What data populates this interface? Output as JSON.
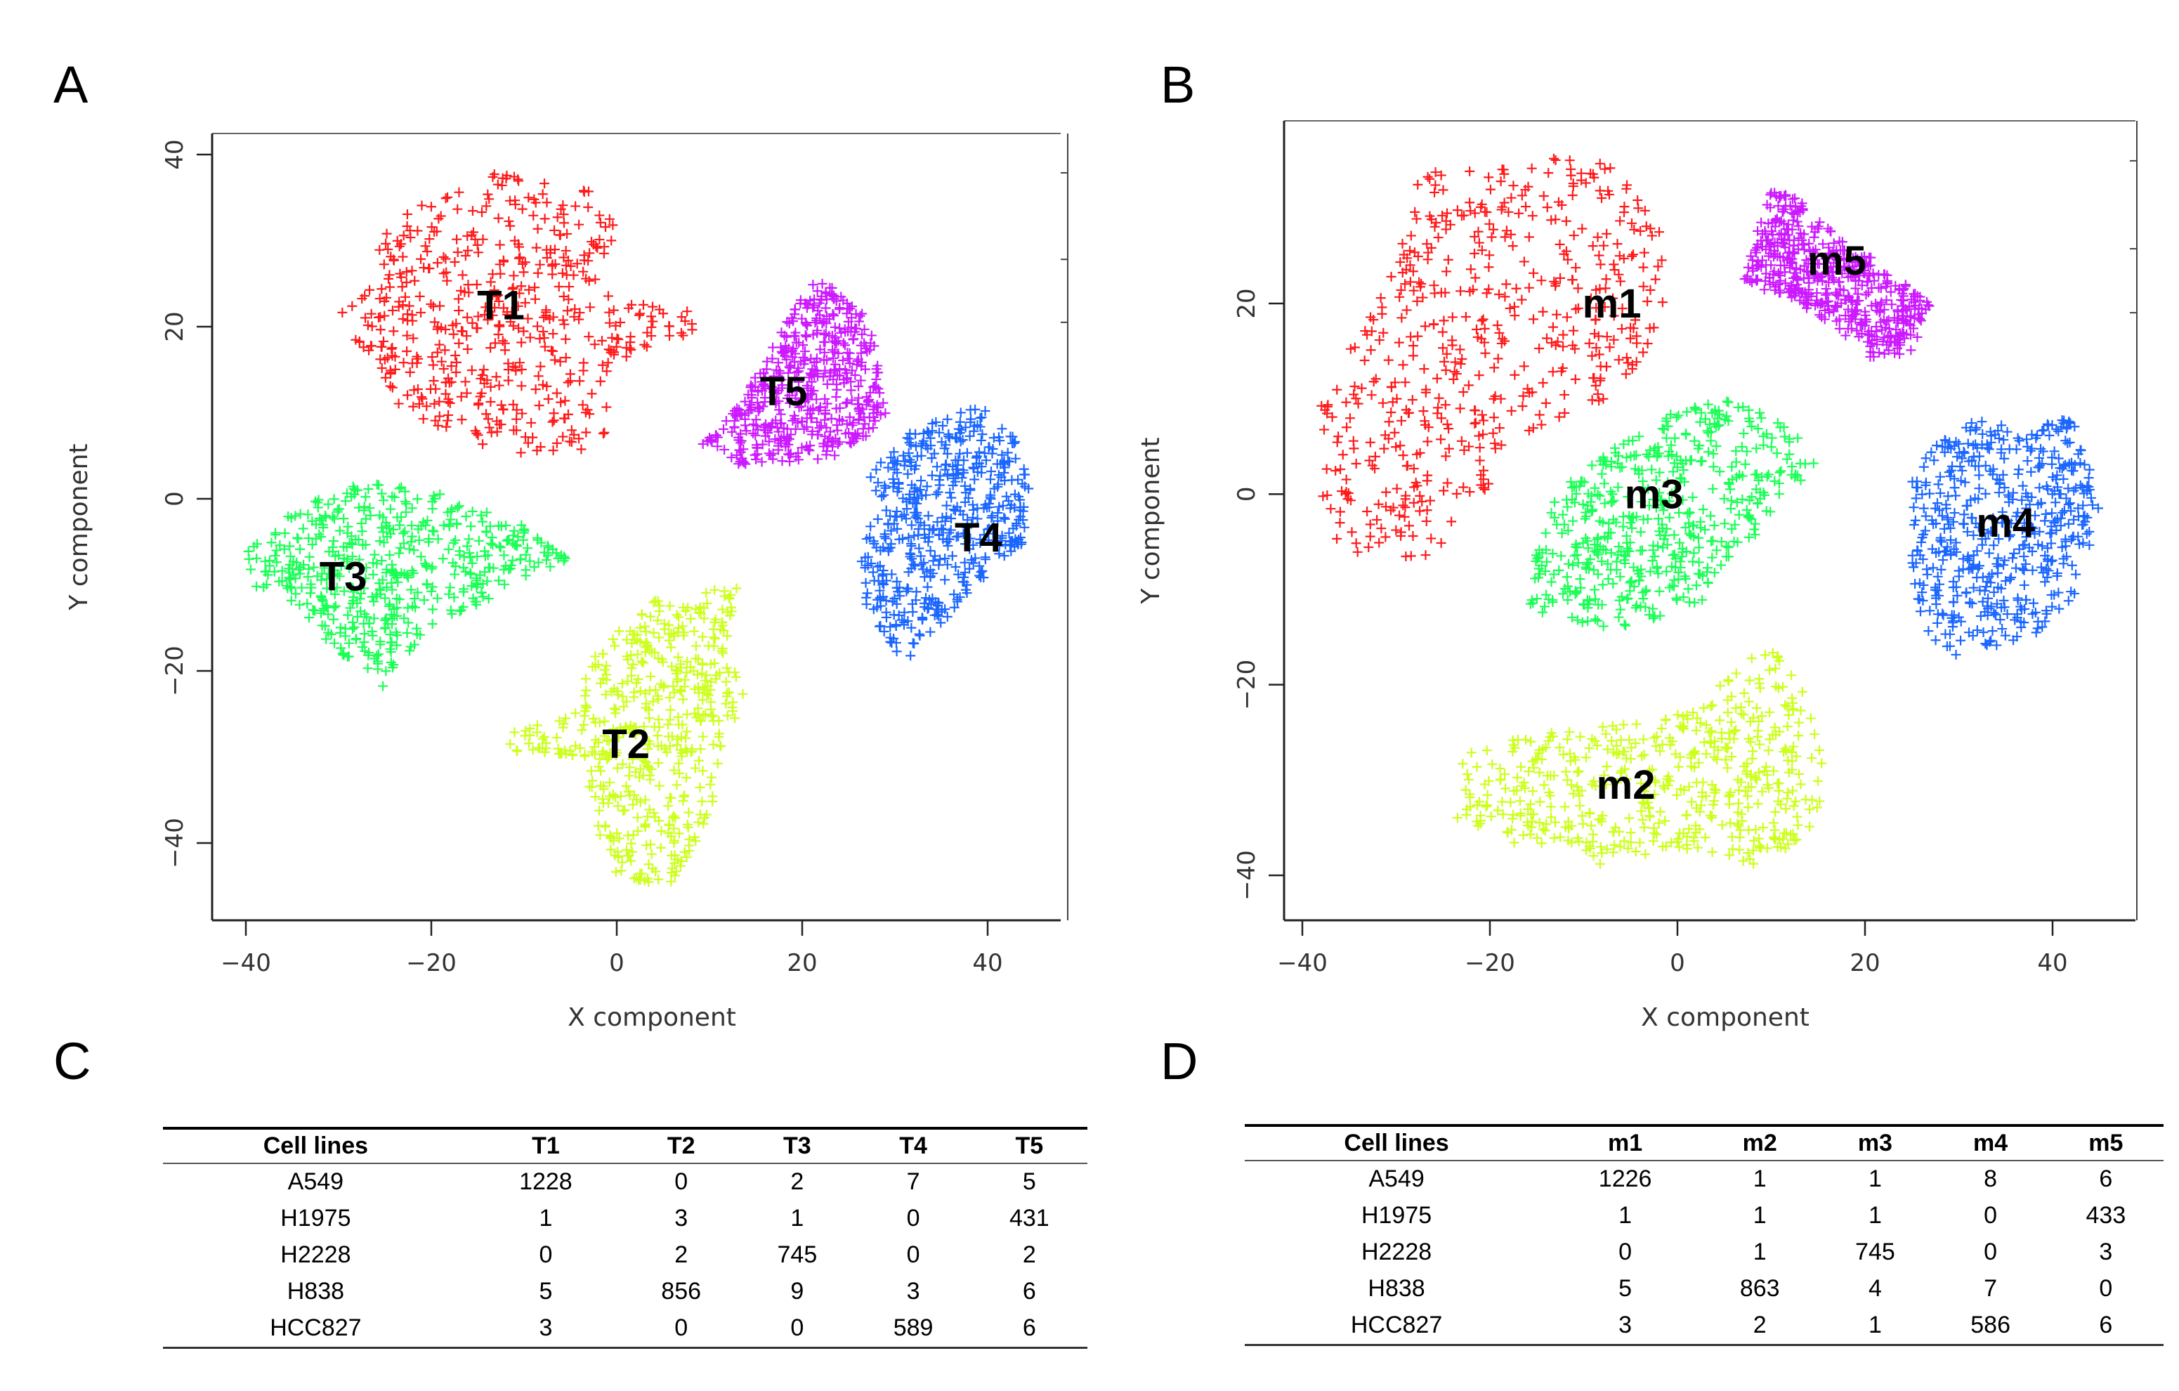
{
  "panels": {
    "a": "A",
    "b": "B",
    "c": "C",
    "d": "D"
  },
  "chart_data": [
    {
      "type": "scatter",
      "panel": "A",
      "xlabel": "X component",
      "ylabel": "Y component",
      "xlim": [
        -44,
        48
      ],
      "ylim": [
        -49,
        42
      ],
      "xticks": [
        -40,
        -20,
        0,
        20,
        40
      ],
      "yticks": [
        40,
        20,
        0,
        -20,
        -40
      ],
      "xtick_labels": [
        "−40",
        "−20",
        "0",
        "20",
        "40"
      ],
      "ytick_labels": [
        "40",
        "20",
        "0",
        "−20",
        "−40"
      ],
      "marker": "+",
      "clusters": [
        {
          "label": "T1",
          "color": "#ff1a1a",
          "label_at": [
            -12.5,
            22.5
          ],
          "polygon": [
            [
              -25,
              32
            ],
            [
              -14,
              38
            ],
            [
              -3,
              36
            ],
            [
              0,
              32
            ],
            [
              -1,
              26
            ],
            [
              3,
              23
            ],
            [
              9,
              22
            ],
            [
              8,
              19
            ],
            [
              2,
              17
            ],
            [
              0,
              12
            ],
            [
              -1,
              6
            ],
            [
              -8,
              5
            ],
            [
              -12,
              4
            ],
            [
              -16,
              7
            ],
            [
              -23,
              10
            ],
            [
              -26,
              16
            ],
            [
              -31,
              21
            ],
            [
              -26,
              27
            ]
          ]
        },
        {
          "label": "T2",
          "color": "#ccff1a",
          "label_at": [
            1,
            -28.5
          ],
          "polygon": [
            [
              -3,
              -19
            ],
            [
              3,
              -12
            ],
            [
              13,
              -10
            ],
            [
              12,
              -18
            ],
            [
              14,
              -23
            ],
            [
              11,
              -30
            ],
            [
              10,
              -38
            ],
            [
              6,
              -45
            ],
            [
              0,
              -44
            ],
            [
              -3,
              -36
            ],
            [
              -3,
              -30
            ],
            [
              -12,
              -30
            ],
            [
              -11,
              -27
            ],
            [
              -4,
              -24
            ]
          ]
        },
        {
          "label": "T3",
          "color": "#1aff55",
          "label_at": [
            -29.5,
            -9
          ],
          "polygon": [
            [
              -37,
              -3
            ],
            [
              -29,
              2
            ],
            [
              -20,
              1
            ],
            [
              -10,
              -3
            ],
            [
              -5,
              -7
            ],
            [
              -12,
              -11
            ],
            [
              -19,
              -14
            ],
            [
              -25,
              -22
            ],
            [
              -30,
              -18
            ],
            [
              -36,
              -11
            ],
            [
              -40,
              -10
            ],
            [
              -40,
              -5
            ]
          ]
        },
        {
          "label": "T4",
          "color": "#1a66ff",
          "label_at": [
            39,
            -4.5
          ],
          "polygon": [
            [
              27,
              3
            ],
            [
              32,
              8
            ],
            [
              39,
              11
            ],
            [
              43,
              7
            ],
            [
              45,
              1
            ],
            [
              44,
              -5
            ],
            [
              39,
              -10
            ],
            [
              34,
              -16
            ],
            [
              31,
              -19
            ],
            [
              27,
              -13
            ],
            [
              26,
              -5
            ],
            [
              28,
              -1
            ]
          ]
        },
        {
          "label": "T5",
          "color": "#cc1aff",
          "label_at": [
            18,
            12.5
          ],
          "polygon": [
            [
              9,
              6
            ],
            [
              13,
              11
            ],
            [
              16,
              16
            ],
            [
              19,
              22
            ],
            [
              22,
              26
            ],
            [
              27,
              21
            ],
            [
              29,
              13
            ],
            [
              29,
              9
            ],
            [
              24,
              5
            ],
            [
              18,
              4
            ],
            [
              12,
              4
            ]
          ]
        }
      ]
    },
    {
      "type": "scatter",
      "panel": "B",
      "xlabel": "X component",
      "ylabel": "Y component",
      "xlim": [
        -42,
        49
      ],
      "ylim": [
        -44,
        39
      ],
      "xticks": [
        -40,
        -20,
        0,
        20,
        40
      ],
      "yticks": [
        20,
        0,
        -20,
        -40
      ],
      "xtick_labels": [
        "−40",
        "−20",
        "0",
        "20",
        "40"
      ],
      "ytick_labels": [
        "20",
        "0",
        "−20",
        "−40"
      ],
      "marker": "+",
      "clusters": [
        {
          "label": "m1",
          "color": "#ff1a1a",
          "label_at": [
            -7,
            20
          ],
          "polygon": [
            [
              -28,
              34
            ],
            [
              -16,
              35
            ],
            [
              -10,
              36
            ],
            [
              -5,
              33
            ],
            [
              -2,
              28
            ],
            [
              -1,
              20
            ],
            [
              -5,
              12
            ],
            [
              -12,
              7
            ],
            [
              -19,
              4
            ],
            [
              -21,
              -2
            ],
            [
              -27,
              -7
            ],
            [
              -36,
              -6
            ],
            [
              -38,
              0
            ],
            [
              -39,
              8
            ],
            [
              -34,
              17
            ],
            [
              -30,
              24
            ]
          ]
        },
        {
          "label": "m2",
          "color": "#ccff1a",
          "label_at": [
            -5.5,
            -30.5
          ],
          "polygon": [
            [
              -23,
              -27
            ],
            [
              -14,
              -25
            ],
            [
              -5,
              -24
            ],
            [
              3,
              -22
            ],
            [
              7,
              -17
            ],
            [
              11,
              -16
            ],
            [
              14,
              -22
            ],
            [
              16,
              -30
            ],
            [
              14,
              -36
            ],
            [
              8,
              -39
            ],
            [
              0,
              -37
            ],
            [
              -8,
              -39
            ],
            [
              -17,
              -37
            ],
            [
              -24,
              -34
            ]
          ]
        },
        {
          "label": "m3",
          "color": "#1aff55",
          "label_at": [
            -2.5,
            0
          ],
          "polygon": [
            [
              -13,
              0
            ],
            [
              -7,
              5
            ],
            [
              0,
              9
            ],
            [
              6,
              10
            ],
            [
              12,
              7
            ],
            [
              15,
              3
            ],
            [
              11,
              -2
            ],
            [
              5,
              -7
            ],
            [
              3,
              -11
            ],
            [
              -5,
              -14
            ],
            [
              -11,
              -14
            ],
            [
              -16,
              -12
            ],
            [
              -15,
              -5
            ]
          ]
        },
        {
          "label": "m4",
          "color": "#1a66ff",
          "label_at": [
            35,
            -3
          ],
          "polygon": [
            [
              25,
              3
            ],
            [
              31,
              8
            ],
            [
              36,
              7
            ],
            [
              42,
              8
            ],
            [
              44,
              3
            ],
            [
              45,
              -2
            ],
            [
              43,
              -10
            ],
            [
              38,
              -15
            ],
            [
              30,
              -17
            ],
            [
              26,
              -15
            ],
            [
              25,
              -7
            ]
          ]
        },
        {
          "label": "m5",
          "color": "#cc1aff",
          "label_at": [
            17,
            24.5
          ],
          "polygon": [
            [
              8,
              26
            ],
            [
              10,
              32
            ],
            [
              13,
              31
            ],
            [
              17,
              27
            ],
            [
              22,
              24
            ],
            [
              27,
              20
            ],
            [
              25,
              15
            ],
            [
              21,
              14
            ],
            [
              16,
              18
            ],
            [
              11,
              21
            ],
            [
              7,
              22
            ]
          ]
        }
      ]
    }
  ],
  "table_c": {
    "headers": [
      "Cell lines",
      "T1",
      "T2",
      "T3",
      "T4",
      "T5"
    ],
    "rows": [
      [
        "A549",
        "1228",
        "0",
        "2",
        "7",
        "5"
      ],
      [
        "H1975",
        "1",
        "3",
        "1",
        "0",
        "431"
      ],
      [
        "H2228",
        "0",
        "2",
        "745",
        "0",
        "2"
      ],
      [
        "H838",
        "5",
        "856",
        "9",
        "3",
        "6"
      ],
      [
        "HCC827",
        "3",
        "0",
        "0",
        "589",
        "6"
      ]
    ]
  },
  "table_d": {
    "headers": [
      "Cell lines",
      "m1",
      "m2",
      "m3",
      "m4",
      "m5"
    ],
    "rows": [
      [
        "A549",
        "1226",
        "1",
        "1",
        "8",
        "6"
      ],
      [
        "H1975",
        "1",
        "1",
        "1",
        "0",
        "433"
      ],
      [
        "H2228",
        "0",
        "1",
        "745",
        "0",
        "3"
      ],
      [
        "H838",
        "5",
        "863",
        "4",
        "7",
        "0"
      ],
      [
        "HCC827",
        "3",
        "2",
        "1",
        "586",
        "6"
      ]
    ]
  }
}
